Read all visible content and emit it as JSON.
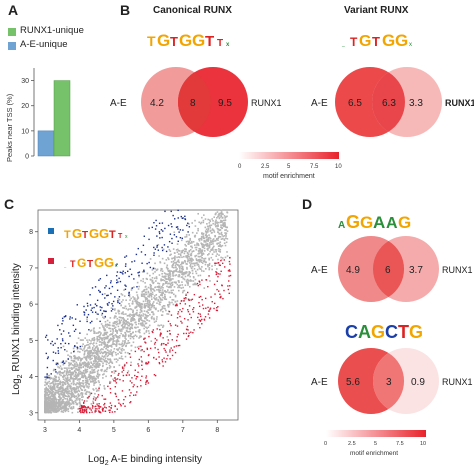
{
  "panels": {
    "a": {
      "letter": "A",
      "legend": [
        {
          "label": "RUNX1-unique",
          "color": "#76c26b"
        },
        {
          "label": "A-E-unique",
          "color": "#6fa3d4"
        }
      ],
      "ylabel": "Peaks near TSS (%)",
      "yticks": [
        "0",
        "10",
        "20",
        "30"
      ]
    },
    "b": {
      "letter": "B",
      "titles": [
        "Canonical RUNX",
        "Variant RUNX"
      ],
      "venns": [
        {
          "left_label": "A-E",
          "right_label": "RUNX1",
          "left": "4.2",
          "overlap": "8",
          "right": "9.5"
        },
        {
          "left_label": "A-E",
          "right_label": "RUNX1",
          "left": "6.5",
          "overlap": "6.3",
          "right": "3.3"
        }
      ],
      "scale": {
        "ticks": [
          "0",
          "2.5",
          "5",
          "7.5",
          "10"
        ],
        "label": "motif enrichment"
      }
    },
    "c": {
      "letter": "C",
      "xlabel": "A-E binding intensity",
      "xlabel_prefix": "Log",
      "ylabel": "RUNX1 binding intensity",
      "ylabel_prefix": "Log",
      "log_sub": "2",
      "xticks": [
        "3",
        "4",
        "5",
        "6",
        "7",
        "8"
      ],
      "yticks": [
        "3",
        "4",
        "5",
        "6",
        "7",
        "8"
      ]
    },
    "d": {
      "letter": "D",
      "motifs": [
        "AGGAAG",
        "CAGCTG"
      ],
      "venns": [
        {
          "left_label": "A-E",
          "right_label": "RUNX1",
          "left": "4.9",
          "overlap": "6",
          "right": "3.7"
        },
        {
          "left_label": "A-E",
          "right_label": "RUNX1",
          "left": "5.6",
          "overlap": "3",
          "right": "0.9"
        }
      ],
      "scale": {
        "ticks": [
          "0",
          "2.5",
          "5",
          "7.5",
          "10"
        ],
        "label": "motif enrichment"
      }
    }
  },
  "chart_data": [
    {
      "type": "bar",
      "categories": [
        "A-E-unique",
        "RUNX1-unique"
      ],
      "values": [
        10,
        30
      ],
      "ylim": [
        0,
        35
      ],
      "ylabel": "Peaks near TSS (%)"
    },
    {
      "type": "scatter",
      "xlabel": "Log2 A-E binding intensity",
      "ylabel": "Log2 RUNX1 binding intensity",
      "xlim": [
        2.8,
        8.6
      ],
      "ylim": [
        2.8,
        8.6
      ],
      "series": [
        {
          "name": "Canonical RUNX",
          "color": "#1a2f8c"
        },
        {
          "name": "Variant RUNX",
          "color": "#d4203a"
        }
      ]
    }
  ],
  "colors": {
    "red_dark": "#e8222b",
    "red_light": "#f6b9b9",
    "grey_points": "#b5b5b5",
    "blue_points": "#1a2f8c",
    "red_points": "#d4203a",
    "bar_green": "#76c26b",
    "bar_blue": "#6fa3d4"
  }
}
